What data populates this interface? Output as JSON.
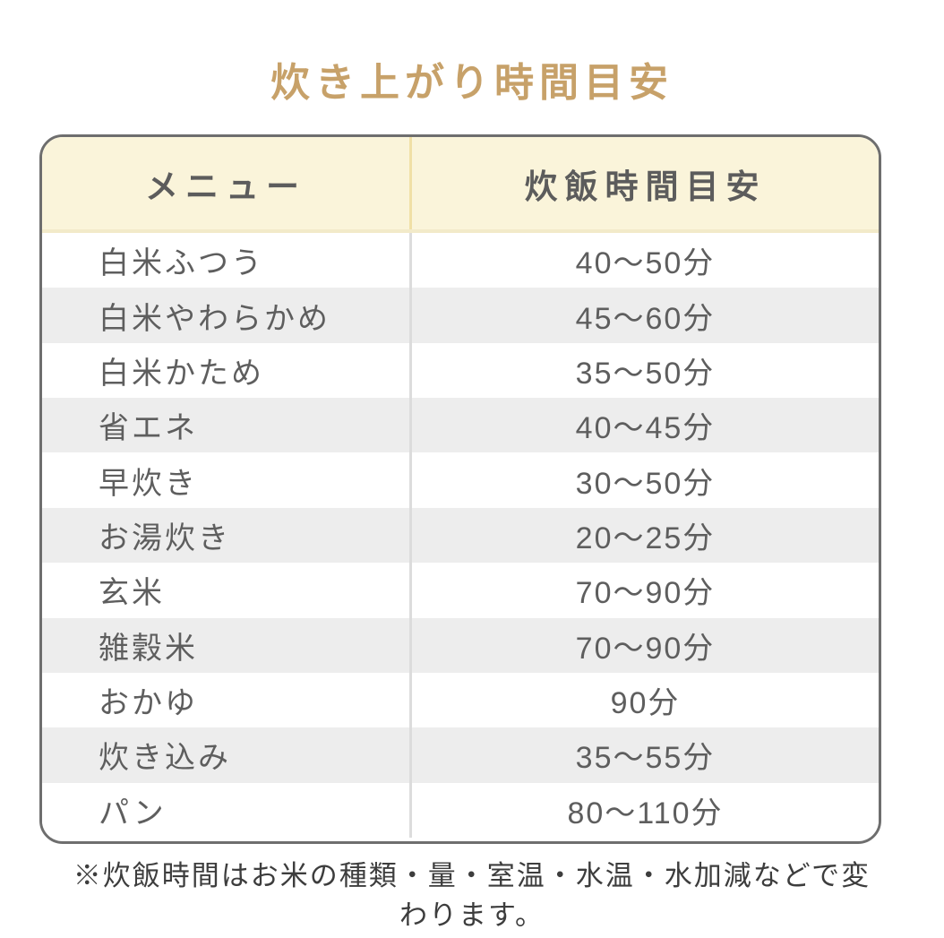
{
  "title": "炊き上がり時間目安",
  "chart_data": {
    "type": "table",
    "title": "炊き上がり時間目安",
    "columns": [
      "メニュー",
      "炊飯時間目安"
    ],
    "rows": [
      [
        "白米ふつう",
        "40〜50分"
      ],
      [
        "白米やわらかめ",
        "45〜60分"
      ],
      [
        "白米かため",
        "35〜50分"
      ],
      [
        "省エネ",
        "40〜45分"
      ],
      [
        "早炊き",
        "30〜50分"
      ],
      [
        "お湯炊き",
        "20〜25分"
      ],
      [
        "玄米",
        "70〜90分"
      ],
      [
        "雑穀米",
        "70〜90分"
      ],
      [
        "おかゆ",
        "90分"
      ],
      [
        "炊き込み",
        "35〜55分"
      ],
      [
        "パン",
        "80〜110分"
      ]
    ]
  },
  "footnote": "※炊飯時間はお米の種類・量・室温・水温・水加減などで変わります。",
  "colors": {
    "title_text": "#c7a169",
    "table_border": "#6e6e6e",
    "header_bg": "#faf4da",
    "header_divider": "#f0e0a6",
    "body_divider": "#dcdcdc",
    "alt_row_bg": "#ededed",
    "cell_text": "#5e5e5e",
    "footnote_text": "#3d3d3d"
  }
}
